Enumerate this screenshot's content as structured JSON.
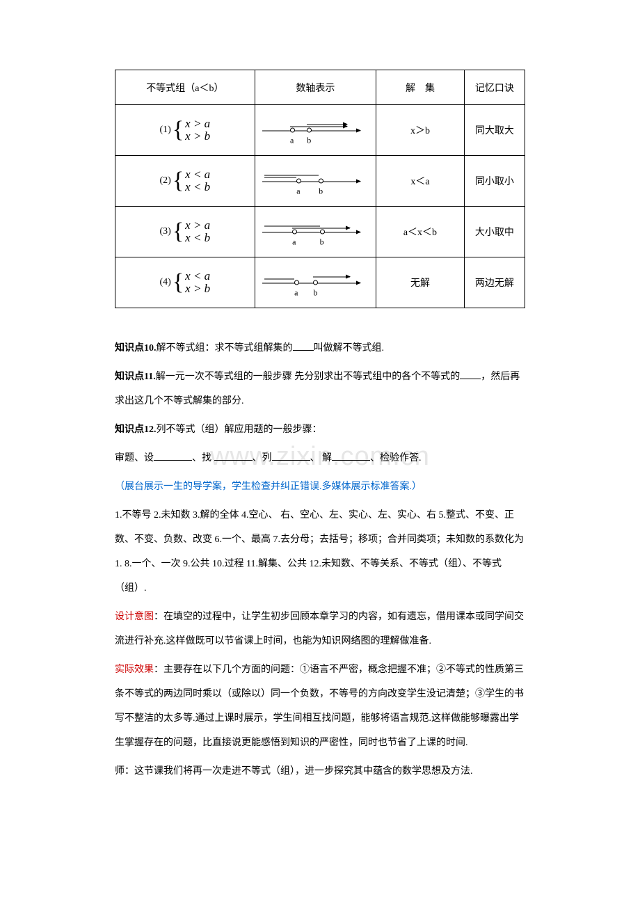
{
  "table": {
    "headers": [
      "不等式组（a＜b）",
      "数轴表示",
      "解　集",
      "记忆口诀"
    ],
    "rows": [
      {
        "num": "(1)",
        "top": "x > a",
        "bot": "x > b",
        "solution": "x＞b",
        "tip": "同大取大",
        "axis": {
          "a_pct": 26,
          "b_pct": 42,
          "rays": [
            {
              "from": 26,
              "dir": "right",
              "len": 54
            },
            {
              "from": 42,
              "dir": "right",
              "len": 38,
              "off": -8
            }
          ]
        }
      },
      {
        "num": "(2)",
        "top": "x < a",
        "bot": "x < b",
        "solution": "x＜a",
        "tip": "同小取小",
        "axis": {
          "a_pct": 32,
          "b_pct": 53,
          "rays": [
            {
              "from": 32,
              "dir": "left",
              "len": 30
            },
            {
              "from": 53,
              "dir": "left",
              "len": 51,
              "off": -8
            }
          ]
        }
      },
      {
        "num": "(3)",
        "top": "x > a",
        "bot": "x < b",
        "solution": "a＜x＜b",
        "tip": "大小取中",
        "axis": {
          "a_pct": 28,
          "b_pct": 54,
          "rays": [
            {
              "from": 28,
              "dir": "right",
              "len": 54
            },
            {
              "from": 54,
              "dir": "left",
              "len": 52,
              "off": -8
            }
          ]
        }
      },
      {
        "num": "(4)",
        "top": "x < a",
        "bot": "x > b",
        "solution": "无解",
        "tip": "两边无解",
        "axis": {
          "a_pct": 30,
          "b_pct": 48,
          "rays": [
            {
              "from": 30,
              "dir": "left",
              "len": 28
            },
            {
              "from": 48,
              "dir": "right",
              "len": 34,
              "off": -8
            }
          ]
        }
      }
    ]
  },
  "p10a": "知识点10.",
  "p10b": "解不等式组：求不等式组解集的",
  "p10c": "叫做解不等式组.",
  "p11a": "知识点11.",
  "p11b": "解一元一次不等式组的一般步骤 先分别求出不等式组中的各个不等式的",
  "p11c": "，然后再求出这几个不等式解集的部分.",
  "p12a": "知识点12.",
  "p12b": "列不等式（组）解应用题的一般步骤：",
  "p12l2a": "审题、设",
  "p12l2b": "、找 ",
  "p12l2c": "、列",
  "p12l2d": "、 解",
  "p12l2e": "、检验作答.",
  "pBlue": "（展台展示一生的导学案，学生检查并纠正错误.多媒体展示标准答案.）",
  "pList": "1.不等号 2.未知数 3.解的全体 4.空心、 右、空心、左、实心、左、实心、右 5.整式、不变、正数、不变、负数、改变 6.一个、最高 7.去分母；去括号；移项；合并同类项；未知数的系数化为1. 8.一个、一次 9.公共 10.过程 11.解集、公共 12.未知数、不等关系、不等式（组）、不等式（组）.",
  "pDes1": "设计意图",
  "pDes2": "：在填空的过程中，让学生初步回顾本章学习的内容，如有遗忘，借用课本或同学间交流进行补充.这样做既可以节省课上时间，也能为知识网络图的理解做准备.",
  "pEff1": "实际效果",
  "pEff2": "：主要存在以下几个方面的问题：①语言不严密，概念把握不准；②不等式的性质第三条不等式的两边同时乘以（或除以）同一个负数，不等号的方向改变学生没记清楚；③学生的书写不整洁的太多等.通过上课时展示，学生间相互找问题，能够将语言规范.这样做能够曝露出学生掌握存在的问题，比直接说更能感悟到知识的严密性，同时也节省了上课的时间.",
  "pEnd": "师：这节课我们将再一次走进不等式（组），进一步探究其中蕴含的数学思想及方法.",
  "watermark": "www.zixin.com.cn",
  "colors": {
    "text": "#000000",
    "blue": "#0066cc",
    "red": "#cc0000",
    "border": "#000000",
    "watermark": "#e6e6e6",
    "bg": "#ffffff"
  }
}
